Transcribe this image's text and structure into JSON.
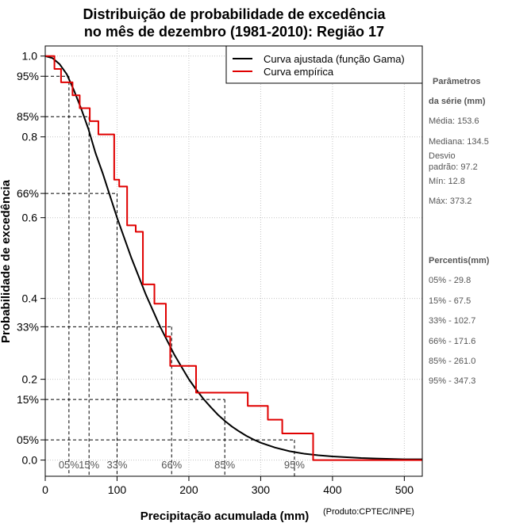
{
  "chart_data": {
    "type": "line",
    "title": [
      "Distribuição de probabilidade de excedência",
      "no mês de dezembro (1981-2010): Região 17"
    ],
    "xlabel": "Precipitação acumulada (mm)",
    "ylabel": "Probabilidade de excedência",
    "xlim": [
      0,
      525
    ],
    "ylim": [
      -0.04,
      1.025
    ],
    "x_ticks": [
      0,
      100,
      200,
      300,
      400,
      500
    ],
    "y_ticks": [
      0.0,
      0.2,
      0.4,
      0.6,
      0.8,
      1.0
    ],
    "y_tick_labels": [
      "0.0",
      "0.2",
      "0.4",
      "0.6",
      "0.8",
      "1.0"
    ],
    "y_percent_ticks": [
      {
        "value": 0.95,
        "label": "95%"
      },
      {
        "value": 0.85,
        "label": "85%"
      },
      {
        "value": 0.66,
        "label": "66%"
      },
      {
        "value": 0.33,
        "label": "33%"
      },
      {
        "value": 0.15,
        "label": "15%"
      },
      {
        "value": 0.05,
        "label": "05%"
      }
    ],
    "grid": true,
    "legend_position": "top-right",
    "series": [
      {
        "name": "Curva ajustada (função Gama)",
        "color": "#000000",
        "kind": "line",
        "x": [
          0,
          10,
          20,
          30,
          40,
          50,
          60,
          70,
          80,
          90,
          100,
          110,
          120,
          130,
          140,
          150,
          160,
          170,
          180,
          190,
          200,
          210,
          220,
          230,
          240,
          250,
          260,
          270,
          280,
          290,
          300,
          320,
          340,
          360,
          380,
          400,
          420,
          440,
          460,
          480,
          500,
          525
        ],
        "values": [
          1.0,
          0.995,
          0.98,
          0.955,
          0.915,
          0.87,
          0.82,
          0.76,
          0.71,
          0.655,
          0.6,
          0.55,
          0.5,
          0.455,
          0.41,
          0.37,
          0.33,
          0.295,
          0.26,
          0.23,
          0.2,
          0.175,
          0.152,
          0.132,
          0.113,
          0.097,
          0.083,
          0.071,
          0.06,
          0.051,
          0.043,
          0.031,
          0.022,
          0.016,
          0.012,
          0.009,
          0.007,
          0.005,
          0.004,
          0.003,
          0.002,
          0.002
        ]
      },
      {
        "name": "Curva empírica",
        "color": "#e00000",
        "kind": "step",
        "x": [
          0,
          12.8,
          22,
          38,
          48,
          62,
          74,
          96,
          103,
          114,
          126,
          136,
          152,
          168,
          174,
          190,
          210,
          222,
          282,
          300,
          310,
          322,
          330,
          364,
          373,
          525
        ],
        "values": [
          1.0,
          0.968,
          0.935,
          0.903,
          0.871,
          0.839,
          0.806,
          0.694,
          0.677,
          0.581,
          0.565,
          0.435,
          0.387,
          0.306,
          0.233,
          0.233,
          0.167,
          0.167,
          0.134,
          0.134,
          0.1,
          0.1,
          0.066,
          0.066,
          0.0,
          0.0
        ]
      }
    ],
    "percentile_lines": [
      {
        "label": "05%",
        "x": 33,
        "p": 0.95
      },
      {
        "label": "15%",
        "x": 61,
        "p": 0.85
      },
      {
        "label": "33%",
        "x": 100,
        "p": 0.66
      },
      {
        "label": "66%",
        "x": 176,
        "p": 0.33
      },
      {
        "label": "85%",
        "x": 250,
        "p": 0.15
      },
      {
        "label": "95%",
        "x": 347,
        "p": 0.05
      }
    ],
    "credit": "(Produto:CPTEC/INPE)",
    "side_panel": {
      "param_header_1": "Parâmetros",
      "param_header_2": "da série (mm)",
      "media": "Média: 153.6",
      "mediana": "Mediana: 134.5",
      "desvio_1": "Desvio",
      "desvio_2": "padrão: 97.2",
      "min": "Mín: 12.8",
      "max": "Máx: 373.2",
      "perc_header": "Percentis(mm)",
      "percentis": [
        "05% - 29.8",
        "15% - 67.5",
        "33% - 102.7",
        "66% - 171.6",
        "85% - 261.0",
        "95% - 347.3"
      ]
    }
  }
}
